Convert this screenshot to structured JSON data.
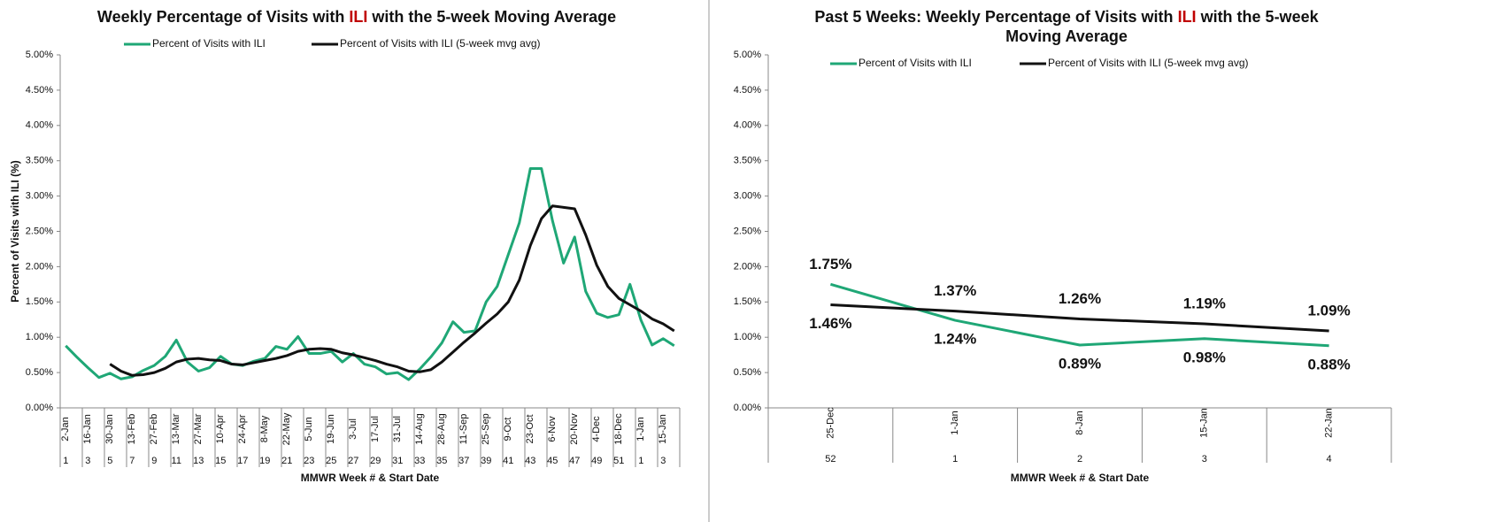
{
  "chart_data": [
    {
      "type": "line",
      "title": [
        [
          {
            "text": "Weekly Percentage of Visits with "
          },
          {
            "text": "ILI",
            "color": "#c00000"
          },
          {
            "text": " with the 5-week Moving Average"
          }
        ]
      ],
      "y_label": "Percent of Visits with ILI (%)",
      "x_label": "MMWR Week # & Start Date",
      "categories": [
        "2-Jan",
        null,
        "16-Jan",
        null,
        "30-Jan",
        null,
        "13-Feb",
        null,
        "27-Feb",
        null,
        "13-Mar",
        null,
        "27-Mar",
        null,
        "10-Apr",
        null,
        "24-Apr",
        null,
        "8-May",
        null,
        "22-May",
        null,
        "5-Jun",
        null,
        "19-Jun",
        null,
        "3-Jul",
        null,
        "17-Jul",
        null,
        "31-Jul",
        null,
        "14-Aug",
        null,
        "28-Aug",
        null,
        "11-Sep",
        null,
        "25-Sep",
        null,
        "9-Oct",
        null,
        "23-Oct",
        null,
        "6-Nov",
        null,
        "20-Nov",
        null,
        "4-Dec",
        null,
        "18-Dec",
        null,
        "1-Jan",
        null,
        "15-Jan",
        null
      ],
      "week_numbers": [
        "1",
        null,
        "3",
        null,
        "5",
        null,
        "7",
        null,
        "9",
        null,
        "11",
        null,
        "13",
        null,
        "15",
        null,
        "17",
        null,
        "19",
        null,
        "21",
        null,
        "23",
        null,
        "25",
        null,
        "27",
        null,
        "29",
        null,
        "31",
        null,
        "33",
        null,
        "35",
        null,
        "37",
        null,
        "39",
        null,
        "41",
        null,
        "43",
        null,
        "45",
        null,
        "47",
        null,
        "49",
        null,
        "51",
        null,
        "1",
        null,
        "3",
        null
      ],
      "series": [
        {
          "name": "Percent of Visits with ILI",
          "color": "#1fa776",
          "values": [
            0.88,
            0.72,
            0.57,
            0.43,
            0.49,
            0.41,
            0.44,
            0.53,
            0.6,
            0.73,
            0.96,
            0.65,
            0.52,
            0.57,
            0.73,
            0.62,
            0.6,
            0.66,
            0.7,
            0.87,
            0.83,
            1.01,
            0.77,
            0.77,
            0.8,
            0.65,
            0.77,
            0.62,
            0.58,
            0.48,
            0.5,
            0.4,
            0.55,
            0.72,
            0.92,
            1.22,
            1.07,
            1.09,
            1.5,
            1.72,
            2.17,
            2.62,
            3.39,
            3.39,
            2.65,
            2.05,
            2.42,
            1.65,
            1.34,
            1.28,
            1.32,
            1.75,
            1.24,
            0.89,
            0.98,
            0.88
          ]
        },
        {
          "name": "Percent of Visits with ILI (5-week mvg avg)",
          "color": "#111111",
          "values": [
            null,
            null,
            null,
            null,
            0.62,
            0.52,
            0.46,
            0.47,
            0.5,
            0.56,
            0.65,
            0.69,
            0.7,
            0.68,
            0.67,
            0.62,
            0.61,
            0.64,
            0.67,
            0.7,
            0.74,
            0.8,
            0.83,
            0.84,
            0.83,
            0.78,
            0.75,
            0.71,
            0.67,
            0.62,
            0.58,
            0.52,
            0.51,
            0.54,
            0.65,
            0.79,
            0.93,
            1.06,
            1.2,
            1.33,
            1.5,
            1.81,
            2.3,
            2.68,
            2.86,
            2.84,
            2.82,
            2.45,
            2.02,
            1.72,
            1.55,
            1.46,
            1.37,
            1.26,
            1.19,
            1.09
          ]
        }
      ],
      "ylim": [
        0,
        5
      ],
      "yticks": [
        {
          "value": 0,
          "label": "0.00%"
        },
        {
          "value": 0.5,
          "label": "0.50%"
        },
        {
          "value": 1,
          "label": "1.00%"
        },
        {
          "value": 1.5,
          "label": "1.50%"
        },
        {
          "value": 2,
          "label": "2.00%"
        },
        {
          "value": 2.5,
          "label": "2.50%"
        },
        {
          "value": 3,
          "label": "3.00%"
        },
        {
          "value": 3.5,
          "label": "3.50%"
        },
        {
          "value": 4,
          "label": "4.00%"
        },
        {
          "value": 4.5,
          "label": "4.50%"
        },
        {
          "value": 5,
          "label": "5.00%"
        }
      ],
      "grid": false,
      "legend": "top"
    },
    {
      "type": "line",
      "title": [
        [
          {
            "text": "Past 5 Weeks: Weekly Percentage of Visits with "
          },
          {
            "text": "ILI",
            "color": "#c00000"
          },
          {
            "text": " with the 5-week"
          }
        ],
        [
          {
            "text": "Moving Average"
          }
        ]
      ],
      "x_label": "MMWR Week # & Start Date",
      "categories": [
        "25-Dec",
        "1-Jan",
        "8-Jan",
        "15-Jan",
        "22-Jan"
      ],
      "week_numbers": [
        "52",
        "1",
        "2",
        "3",
        "4"
      ],
      "series": [
        {
          "name": "Percent of Visits with ILI",
          "color": "#1fa776",
          "values": [
            1.75,
            1.24,
            0.89,
            0.98,
            0.88
          ],
          "value_labels": [
            "1.75%",
            "1.24%",
            "0.89%",
            "0.98%",
            "0.88%"
          ]
        },
        {
          "name": "Percent of Visits with ILI (5-week mvg avg)",
          "color": "#111111",
          "values": [
            1.46,
            1.37,
            1.26,
            1.19,
            1.09
          ],
          "value_labels": [
            "1.46%",
            "1.37%",
            "1.26%",
            "1.19%",
            "1.09%"
          ]
        }
      ],
      "ylim": [
        0,
        5
      ],
      "yticks": [
        {
          "value": 0,
          "label": "0.00%"
        },
        {
          "value": 0.5,
          "label": "0.50%"
        },
        {
          "value": 1,
          "label": "1.00%"
        },
        {
          "value": 1.5,
          "label": "1.50%"
        },
        {
          "value": 2,
          "label": "2.00%"
        },
        {
          "value": 2.5,
          "label": "2.50%"
        },
        {
          "value": 3,
          "label": "3.00%"
        },
        {
          "value": 3.5,
          "label": "3.50%"
        },
        {
          "value": 4,
          "label": "4.00%"
        },
        {
          "value": 4.5,
          "label": "4.50%"
        },
        {
          "value": 5,
          "label": "5.00%"
        }
      ],
      "grid": false,
      "legend": "top"
    }
  ]
}
